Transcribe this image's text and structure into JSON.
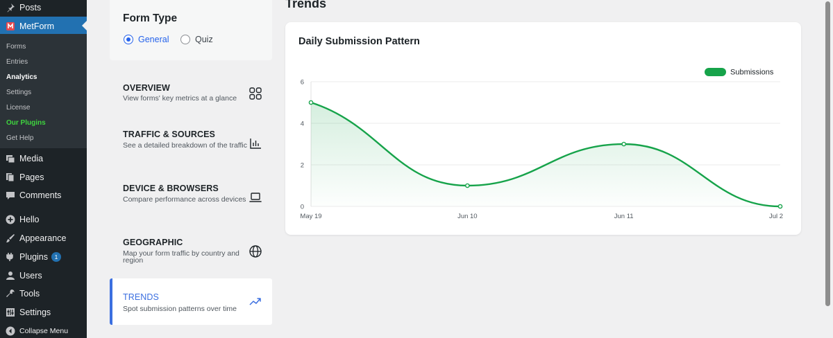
{
  "sidebar": {
    "top_items": [
      {
        "label": "Posts",
        "icon": "pin-icon"
      },
      {
        "label": "MetForm",
        "icon": "metform-icon"
      }
    ],
    "submenu": [
      "Forms",
      "Entries",
      "Analytics",
      "Settings",
      "License",
      "Our Plugins",
      "Get Help"
    ],
    "bottom_items": [
      {
        "label": "Media",
        "icon": "media-icon"
      },
      {
        "label": "Pages",
        "icon": "pages-icon"
      },
      {
        "label": "Comments",
        "icon": "comments-icon"
      },
      {
        "label": "Hello",
        "icon": "plus-icon"
      },
      {
        "label": "Appearance",
        "icon": "brush-icon"
      },
      {
        "label": "Plugins",
        "icon": "plugin-icon",
        "badge": "1"
      },
      {
        "label": "Users",
        "icon": "user-icon"
      },
      {
        "label": "Tools",
        "icon": "wrench-icon"
      },
      {
        "label": "Settings",
        "icon": "settings-icon"
      },
      {
        "label": "Collapse Menu",
        "icon": "collapse-icon"
      }
    ]
  },
  "form_type": {
    "title": "Form Type",
    "options": [
      "General",
      "Quiz"
    ],
    "selected": "General"
  },
  "nav": [
    {
      "title": "OVERVIEW",
      "desc": "View forms' key metrics at a glance",
      "icon": "grid-icon"
    },
    {
      "title": "TRAFFIC & SOURCES",
      "desc": "See a detailed breakdown of the traffic",
      "icon": "bar-chart-icon"
    },
    {
      "title": "DEVICE & BROWSERS",
      "desc": "Compare performance across devices",
      "icon": "laptop-icon"
    },
    {
      "title": "GEOGRAPHIC",
      "desc": "Map your form traffic by country and region",
      "icon": "globe-icon"
    },
    {
      "title": "TRENDS",
      "desc": "Spot submission patterns over time",
      "icon": "trending-icon",
      "active": true
    }
  ],
  "main": {
    "title": "Trends"
  },
  "colors": {
    "accent": "#3b6fe0",
    "wp_blue": "#2271b1",
    "series": "#16a34a"
  },
  "chart_data": {
    "type": "area",
    "title": "Daily Submission Pattern",
    "categories": [
      "May 19",
      "Jun 10",
      "Jun 11",
      "Jul 2"
    ],
    "series": [
      {
        "name": "Submissions",
        "values": [
          5,
          1,
          3,
          0
        ]
      }
    ],
    "yticks": [
      "0",
      "2",
      "4",
      "6"
    ],
    "ylim": [
      0,
      6
    ],
    "grid": true,
    "legend": "top-right"
  }
}
